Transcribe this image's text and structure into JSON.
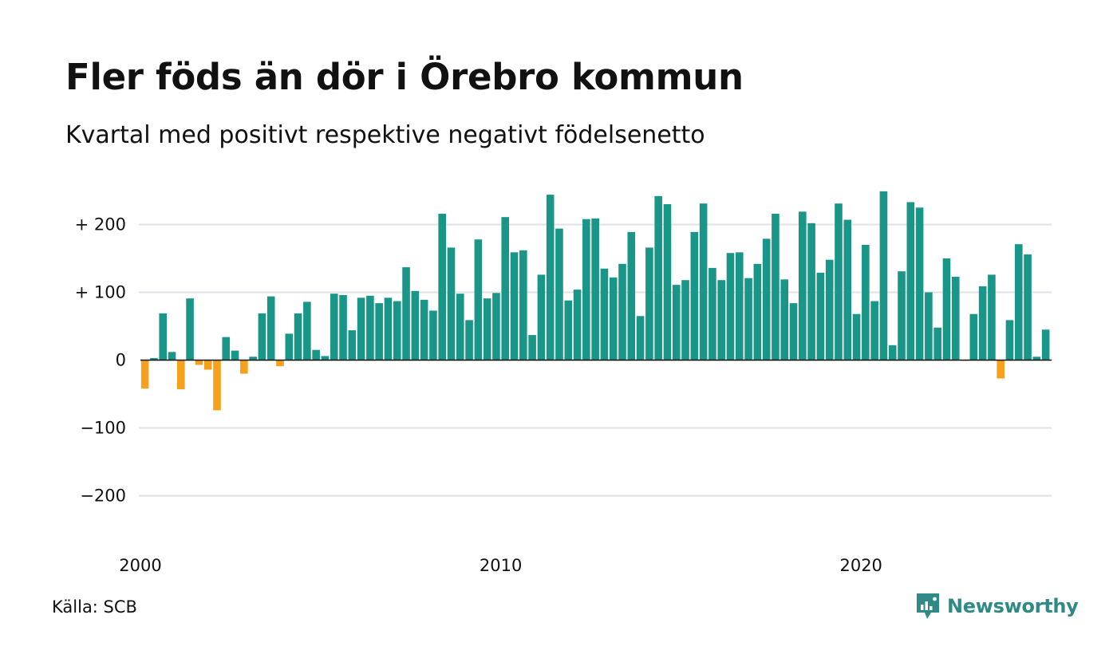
{
  "title": "Fler föds än dör i Örebro kommun",
  "subtitle": "Kvartal med positivt respektive negativt födelsenetto",
  "source": "Källa: SCB",
  "brand": {
    "name": "Newsworthy",
    "icon": "newsworthy-logo-icon"
  },
  "colors": {
    "positive": "#1a9688",
    "negative": "#f5a11c",
    "grid": "#e1e1e6",
    "brand": "#2f8a85"
  },
  "chart_data": {
    "type": "bar",
    "title": "Fler föds än dör i Örebro kommun",
    "subtitle": "Kvartal med positivt respektive negativt födelsenetto",
    "ylim": [
      -270,
      250
    ],
    "grid": true,
    "y_ticks": [
      {
        "value": 200,
        "label": "+ 200"
      },
      {
        "value": 100,
        "label": "+ 100"
      },
      {
        "value": 0,
        "label": "0"
      },
      {
        "value": -100,
        "label": "−100"
      },
      {
        "value": -200,
        "label": "−200"
      }
    ],
    "x_ticks": [
      {
        "value": 2000,
        "label": "2000"
      },
      {
        "value": 2010,
        "label": "2010"
      },
      {
        "value": 2020,
        "label": "2020"
      }
    ],
    "x_start": 2000,
    "periods_per_year": 4,
    "values": [
      -42,
      3,
      69,
      12,
      -43,
      91,
      -7,
      -14,
      -74,
      34,
      14,
      -20,
      5,
      69,
      94,
      -9,
      39,
      69,
      86,
      15,
      6,
      98,
      96,
      44,
      92,
      95,
      84,
      92,
      87,
      137,
      102,
      89,
      73,
      216,
      166,
      98,
      59,
      178,
      91,
      99,
      211,
      159,
      162,
      37,
      126,
      244,
      194,
      88,
      104,
      208,
      209,
      135,
      122,
      142,
      189,
      65,
      166,
      242,
      230,
      111,
      118,
      189,
      231,
      136,
      118,
      158,
      159,
      121,
      142,
      179,
      216,
      119,
      84,
      219,
      202,
      129,
      148,
      231,
      207,
      68,
      170,
      87,
      249,
      22,
      131,
      233,
      225,
      100,
      48,
      150,
      123,
      -1,
      68,
      109,
      126,
      -27,
      59,
      171,
      156,
      5,
      45
    ]
  }
}
